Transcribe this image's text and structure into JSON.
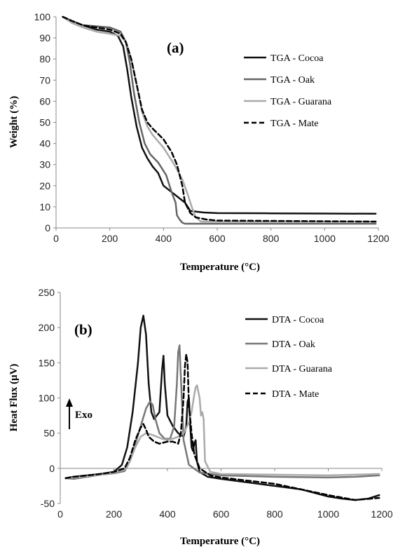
{
  "chart_data": [
    {
      "type": "line",
      "panel_label": "(a)",
      "xlabel": "Temperature  (°C)",
      "ylabel": "Weight  (%)",
      "xlim": [
        0,
        1200
      ],
      "ylim": [
        0,
        100
      ],
      "x_ticks": [
        0,
        200,
        400,
        600,
        800,
        1000,
        1200
      ],
      "y_ticks": [
        0,
        10,
        20,
        30,
        40,
        50,
        60,
        70,
        80,
        90,
        100
      ],
      "grid": false,
      "legend_position": "top-right",
      "series": [
        {
          "name": "TGA - Cocoa",
          "color": "#111111",
          "dash": "solid",
          "x": [
            25,
            60,
            100,
            150,
            200,
            230,
            250,
            265,
            280,
            300,
            320,
            340,
            360,
            380,
            400,
            430,
            460,
            480,
            500,
            550,
            600,
            800,
            1000,
            1190
          ],
          "y": [
            100,
            98,
            96,
            94,
            93,
            91,
            86,
            75,
            62,
            48,
            38,
            33,
            29,
            26,
            20,
            17,
            14,
            12,
            8,
            7.3,
            7,
            6.9,
            6.8,
            6.7
          ]
        },
        {
          "name": "TGA - Oak",
          "color": "#666666",
          "dash": "solid",
          "x": [
            25,
            60,
            100,
            150,
            200,
            240,
            260,
            275,
            290,
            310,
            330,
            350,
            380,
            410,
            430,
            445,
            450,
            460,
            470,
            480,
            500,
            1190
          ],
          "y": [
            100,
            98,
            96,
            95.5,
            95,
            93,
            88,
            78,
            64,
            50,
            40,
            35,
            31,
            25,
            17,
            12,
            6,
            4,
            2.5,
            2,
            2,
            2
          ]
        },
        {
          "name": "TGA - Guarana",
          "color": "#aaaaaa",
          "dash": "solid",
          "x": [
            25,
            60,
            100,
            150,
            200,
            240,
            260,
            280,
            300,
            320,
            340,
            360,
            400,
            440,
            470,
            490,
            505,
            520,
            540,
            600,
            1190
          ],
          "y": [
            100,
            97,
            95,
            93,
            92,
            91,
            88,
            80,
            68,
            55,
            48,
            44,
            38,
            30,
            23,
            16,
            10,
            5,
            3,
            3,
            3
          ]
        },
        {
          "name": "TGA - Mate",
          "color": "#000000",
          "dash": "dashed",
          "x": [
            25,
            60,
            100,
            150,
            200,
            240,
            260,
            280,
            300,
            320,
            340,
            360,
            400,
            430,
            450,
            470,
            480,
            500,
            520,
            560,
            600,
            1190
          ],
          "y": [
            100,
            98,
            96,
            95,
            94,
            92,
            88,
            80,
            68,
            56,
            50,
            47,
            42,
            36,
            30,
            20,
            12,
            7,
            5,
            4,
            3.5,
            3
          ]
        }
      ]
    },
    {
      "type": "line",
      "panel_label": "(b)",
      "xlabel": "Temperature  (°C)",
      "ylabel": "Heat Flux  (μV)",
      "xlim": [
        0,
        1200
      ],
      "ylim": [
        -50,
        250
      ],
      "x_ticks": [
        0,
        200,
        400,
        600,
        800,
        1000,
        1200
      ],
      "y_ticks": [
        -50,
        0,
        50,
        100,
        150,
        200,
        250
      ],
      "grid": false,
      "legend_position": "top-right",
      "annotation": "Exo",
      "series": [
        {
          "name": "DTA - Cocoa",
          "color": "#111111",
          "dash": "solid",
          "x": [
            20,
            50,
            100,
            150,
            200,
            230,
            250,
            270,
            290,
            300,
            310,
            320,
            330,
            340,
            350,
            370,
            380,
            385,
            390,
            400,
            420,
            440,
            460,
            470,
            475,
            480,
            485,
            490,
            495,
            500,
            505,
            510,
            520,
            550,
            600,
            700,
            800,
            900,
            1000,
            1050,
            1100,
            1150,
            1190
          ],
          "y": [
            -14,
            -12,
            -10,
            -8,
            -5,
            5,
            30,
            80,
            150,
            200,
            217,
            190,
            120,
            80,
            70,
            80,
            140,
            160,
            120,
            75,
            60,
            50,
            45,
            60,
            95,
            100,
            60,
            30,
            25,
            35,
            40,
            10,
            -5,
            -12,
            -15,
            -20,
            -25,
            -30,
            -40,
            -43,
            -45,
            -43,
            -38
          ]
        },
        {
          "name": "DTA - Oak",
          "color": "#777777",
          "dash": "solid",
          "x": [
            20,
            50,
            100,
            150,
            200,
            240,
            260,
            280,
            300,
            320,
            335,
            345,
            355,
            370,
            390,
            410,
            425,
            435,
            440,
            445,
            450,
            460,
            480,
            520,
            600,
            800,
            1000,
            1100,
            1190
          ],
          "y": [
            -14,
            -15,
            -12,
            -9,
            -7,
            -4,
            10,
            35,
            60,
            85,
            95,
            90,
            70,
            50,
            42,
            42,
            60,
            120,
            165,
            175,
            130,
            40,
            5,
            -6,
            -10,
            -12,
            -13,
            -12,
            -10
          ]
        },
        {
          "name": "DTA - Guarana",
          "color": "#aaaaaa",
          "dash": "solid",
          "x": [
            20,
            50,
            100,
            150,
            200,
            240,
            260,
            280,
            300,
            320,
            340,
            360,
            380,
            400,
            420,
            440,
            460,
            480,
            490,
            500,
            505,
            510,
            520,
            525,
            530,
            535,
            540,
            560,
            600,
            800,
            1000,
            1100,
            1190
          ],
          "y": [
            -14,
            -13,
            -11,
            -9,
            -6,
            -2,
            10,
            30,
            45,
            50,
            48,
            45,
            42,
            40,
            42,
            45,
            50,
            65,
            80,
            105,
            115,
            118,
            100,
            75,
            80,
            70,
            10,
            -5,
            -8,
            -9,
            -10,
            -9,
            -8
          ]
        },
        {
          "name": "DTA - Mate",
          "color": "#000000",
          "dash": "dashed",
          "x": [
            20,
            50,
            100,
            150,
            200,
            240,
            260,
            280,
            300,
            310,
            320,
            330,
            350,
            370,
            400,
            420,
            440,
            450,
            460,
            465,
            470,
            475,
            480,
            490,
            500,
            520,
            560,
            600,
            800,
            1000,
            1100,
            1190
          ],
          "y": [
            -14,
            -12,
            -10,
            -8,
            -5,
            0,
            15,
            40,
            58,
            63,
            55,
            45,
            38,
            35,
            38,
            38,
            35,
            50,
            100,
            145,
            162,
            150,
            90,
            50,
            20,
            0,
            -10,
            -13,
            -22,
            -38,
            -45,
            -42
          ]
        }
      ]
    }
  ]
}
